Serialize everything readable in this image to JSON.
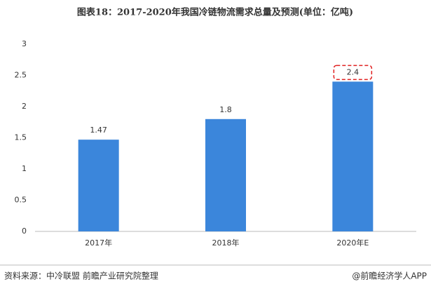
{
  "chart_data": {
    "type": "bar",
    "title": "图表18：2017-2020年我国冷链物流需求总量及预测(单位：亿吨)",
    "categories": [
      "2017年",
      "2018年",
      "2020年E"
    ],
    "values": [
      1.47,
      1.8,
      2.4
    ],
    "color": "#3b86db",
    "ylim": [
      0,
      3
    ],
    "yticks": [
      0,
      0.5,
      1,
      1.5,
      2,
      2.5,
      3
    ],
    "grid": false,
    "highlight_index": 2,
    "highlight_color": "#e02020",
    "source": "资料来源：中冷联盟 前瞻产业研究院整理",
    "credit": "@前瞻经济学人APP"
  }
}
